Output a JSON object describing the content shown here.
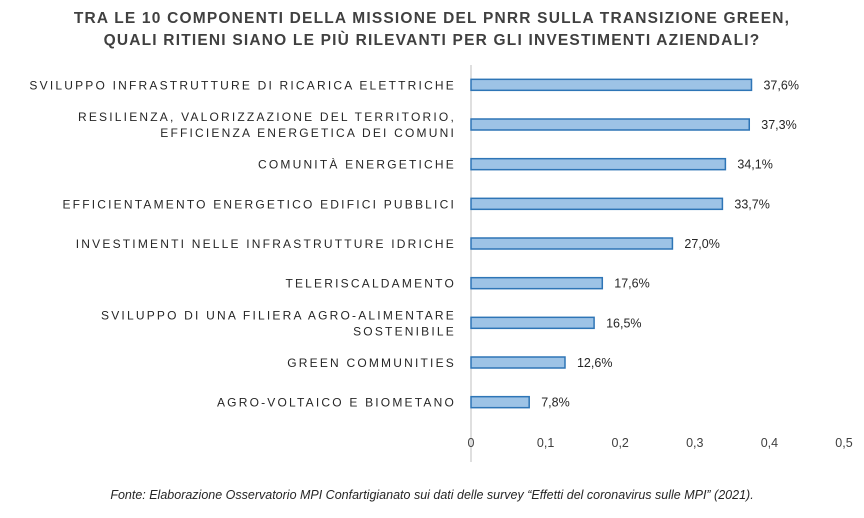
{
  "chart_data": {
    "type": "bar",
    "orientation": "horizontal",
    "title_lines": [
      "TRA LE 10 COMPONENTI DELLA MISSIONE DEL PNRR SULLA TRANSIZIONE GREEN,",
      "QUALI RITIENI SIANO LE PIÙ RILEVANTI PER GLI INVESTIMENTI AZIENDALI?"
    ],
    "categories": [
      [
        "SVILUPPO INFRASTRUTTURE DI RICARICA ELETTRICHE"
      ],
      [
        "RESILIENZA, VALORIZZAZIONE DEL TERRITORIO,",
        "EFFICIENZA ENERGETICA DEI COMUNI"
      ],
      [
        "COMUNITÀ ENERGETICHE"
      ],
      [
        "EFFICIENTAMENTO ENERGETICO EDIFICI PUBBLICI"
      ],
      [
        "INVESTIMENTI NELLE INFRASTRUTTURE IDRICHE"
      ],
      [
        "TELERISCALDAMENTO"
      ],
      [
        "SVILUPPO DI UNA FILIERA AGRO-ALIMENTARE",
        "SOSTENIBILE"
      ],
      [
        "GREEN COMMUNITIES"
      ],
      [
        "AGRO-VOLTAICO E BIOMETANO"
      ]
    ],
    "values": [
      0.376,
      0.373,
      0.341,
      0.337,
      0.27,
      0.176,
      0.165,
      0.126,
      0.078
    ],
    "value_labels": [
      "37,6%",
      "37,3%",
      "34,1%",
      "33,7%",
      "27,0%",
      "17,6%",
      "16,5%",
      "12,6%",
      "7,8%"
    ],
    "xlim": [
      0,
      0.5
    ],
    "x_ticks": [
      0,
      0.1,
      0.2,
      0.3,
      0.4,
      0.5
    ],
    "x_tick_labels": [
      "0",
      "0,1",
      "0,2",
      "0,3",
      "0,4",
      "0,5"
    ],
    "grid": false,
    "bar_fill": "#9DC3E6",
    "bar_stroke": "#2E75B6",
    "axis_color": "#BFBFBF"
  },
  "footer": {
    "source": "Fonte: Elaborazione Osservatorio MPI Confartigianato sui dati delle survey “Effetti del coronavirus sulle MPI” (2021)."
  }
}
